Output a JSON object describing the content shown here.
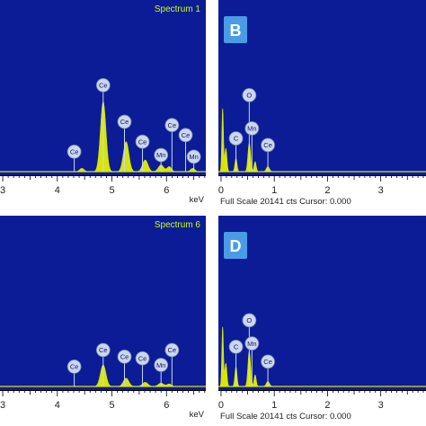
{
  "colors": {
    "plot_bg": "#0b1c96",
    "spectrum": "#d8e600",
    "bubble": "#c9d7f0",
    "bubble_stroke": "#6f7fb0",
    "badge": "#4a9be6",
    "title": "#c8ff00",
    "axis_bar": "#ffffff"
  },
  "chart_data": [
    {
      "id": "A",
      "type": "area",
      "panel_label": "",
      "title": "Spectrum 1",
      "xlim": [
        2.95,
        6.72
      ],
      "ylim": [
        0,
        100
      ],
      "x_ticks": [
        3,
        4,
        5,
        6
      ],
      "x_unit": "keV",
      "status": "",
      "peaks": [
        {
          "x": 4.84,
          "h": 42,
          "w": 0.05
        },
        {
          "x": 5.26,
          "h": 18,
          "w": 0.05
        },
        {
          "x": 5.61,
          "h": 7,
          "w": 0.05
        },
        {
          "x": 5.9,
          "h": 4,
          "w": 0.05
        },
        {
          "x": 6.05,
          "h": 3,
          "w": 0.04
        },
        {
          "x": 6.48,
          "h": 2,
          "w": 0.04
        },
        {
          "x": 4.45,
          "h": 2,
          "w": 0.04
        }
      ],
      "element_labels": [
        {
          "text": "Ce",
          "x": 4.31,
          "level": 12
        },
        {
          "text": "Ce",
          "x": 4.84,
          "level": 52
        },
        {
          "text": "Ce",
          "x": 5.23,
          "level": 30
        },
        {
          "text": "Ce",
          "x": 5.56,
          "level": 18
        },
        {
          "text": "Mn",
          "x": 5.9,
          "level": 10
        },
        {
          "text": "Ce",
          "x": 6.1,
          "level": 28
        },
        {
          "text": "Ce",
          "x": 6.35,
          "level": 22
        },
        {
          "text": "Mn",
          "x": 6.5,
          "level": 9
        }
      ]
    },
    {
      "id": "B",
      "type": "area",
      "panel_label": "B",
      "title": "",
      "xlim": [
        -0.05,
        3.85
      ],
      "ylim": [
        0,
        100
      ],
      "x_ticks": [
        0,
        1,
        2,
        3
      ],
      "x_unit": "",
      "status": "Full Scale 20141 cts Cursor: 0.000",
      "peaks": [
        {
          "x": 0.03,
          "h": 38,
          "w": 0.015
        },
        {
          "x": 0.09,
          "h": 14,
          "w": 0.02
        },
        {
          "x": 0.28,
          "h": 8,
          "w": 0.02
        },
        {
          "x": 0.53,
          "h": 17,
          "w": 0.025
        },
        {
          "x": 0.64,
          "h": 6,
          "w": 0.02
        },
        {
          "x": 0.88,
          "h": 3,
          "w": 0.03
        }
      ],
      "element_labels": [
        {
          "text": "C",
          "x": 0.28,
          "level": 20
        },
        {
          "text": "O",
          "x": 0.53,
          "level": 46
        },
        {
          "text": "Mn",
          "x": 0.58,
          "level": 26
        },
        {
          "text": "Ce",
          "x": 0.88,
          "level": 16
        }
      ]
    },
    {
      "id": "C",
      "type": "area",
      "panel_label": "",
      "title": "Spectrum 6",
      "xlim": [
        2.95,
        6.72
      ],
      "ylim": [
        0,
        100
      ],
      "x_ticks": [
        3,
        4,
        5,
        6
      ],
      "x_unit": "keV",
      "status": "",
      "peaks": [
        {
          "x": 4.84,
          "h": 13,
          "w": 0.05
        },
        {
          "x": 5.26,
          "h": 5,
          "w": 0.05
        },
        {
          "x": 5.61,
          "h": 2.5,
          "w": 0.05
        },
        {
          "x": 5.9,
          "h": 2,
          "w": 0.05
        },
        {
          "x": 6.05,
          "h": 1.5,
          "w": 0.04
        }
      ],
      "element_labels": [
        {
          "text": "Ce",
          "x": 4.31,
          "level": 12
        },
        {
          "text": "Ce",
          "x": 4.84,
          "level": 22
        },
        {
          "text": "Ce",
          "x": 5.23,
          "level": 18
        },
        {
          "text": "Ce",
          "x": 5.56,
          "level": 17
        },
        {
          "text": "Mn",
          "x": 5.9,
          "level": 13
        },
        {
          "text": "Ce",
          "x": 6.1,
          "level": 22
        }
      ]
    },
    {
      "id": "D",
      "type": "area",
      "panel_label": "D",
      "title": "",
      "xlim": [
        -0.05,
        3.85
      ],
      "ylim": [
        0,
        100
      ],
      "x_ticks": [
        0,
        1,
        2,
        3
      ],
      "x_unit": "",
      "status": "Full Scale 20141 cts Cursor: 0.000",
      "peaks": [
        {
          "x": 0.03,
          "h": 36,
          "w": 0.015
        },
        {
          "x": 0.09,
          "h": 14,
          "w": 0.02
        },
        {
          "x": 0.28,
          "h": 12,
          "w": 0.02
        },
        {
          "x": 0.53,
          "h": 21,
          "w": 0.025
        },
        {
          "x": 0.64,
          "h": 7,
          "w": 0.02
        },
        {
          "x": 0.88,
          "h": 3,
          "w": 0.03
        }
      ],
      "element_labels": [
        {
          "text": "C",
          "x": 0.28,
          "level": 24
        },
        {
          "text": "O",
          "x": 0.53,
          "level": 40
        },
        {
          "text": "Mn",
          "x": 0.58,
          "level": 26
        },
        {
          "text": "Ce",
          "x": 0.88,
          "level": 15
        }
      ]
    }
  ]
}
